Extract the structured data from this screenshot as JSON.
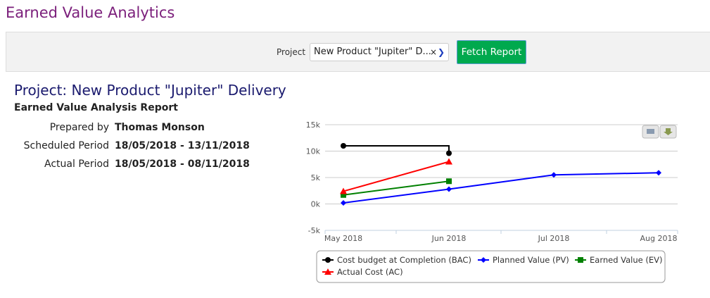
{
  "app_title": "Earned Value Analytics",
  "filter": {
    "project_label": "Project",
    "project_value": "New Product \"Jupiter\" D...",
    "clear_icon": "×",
    "fetch_label": "Fetch Report"
  },
  "report": {
    "title": "Project: New Product \"Jupiter\" Delivery",
    "subtitle": "Earned Value Analysis Report",
    "fields": [
      {
        "label": "Prepared by",
        "value": "Thomas Monson"
      },
      {
        "label": "Scheduled Period",
        "value": "18/05/2018  -  13/11/2018"
      },
      {
        "label": "Actual Period",
        "value": "18/05/2018  -  08/11/2018"
      }
    ]
  },
  "chart_data": {
    "type": "line",
    "categories": [
      "May 2018",
      "Jun 2018",
      "Jul 2018",
      "Aug 2018"
    ],
    "ylim": [
      -5000,
      15000
    ],
    "yticks": [
      "-5k",
      "0k",
      "5k",
      "10k",
      "15k"
    ],
    "grid": true,
    "legend": "bottom",
    "series": [
      {
        "name": "Cost budget at Completion (BAC)",
        "color": "#000000",
        "marker": "circle",
        "step": true,
        "values": [
          11000,
          9600,
          null,
          null
        ]
      },
      {
        "name": "Planned Value (PV)",
        "color": "#0000ff",
        "marker": "diamond",
        "values": [
          200,
          2800,
          5500,
          5900
        ]
      },
      {
        "name": "Earned Value (EV)",
        "color": "#008000",
        "marker": "square",
        "values": [
          1700,
          4300,
          null,
          null
        ]
      },
      {
        "name": "Actual Cost (AC)",
        "color": "#ff0000",
        "marker": "triangle",
        "values": [
          2400,
          8000,
          null,
          null
        ]
      }
    ]
  }
}
